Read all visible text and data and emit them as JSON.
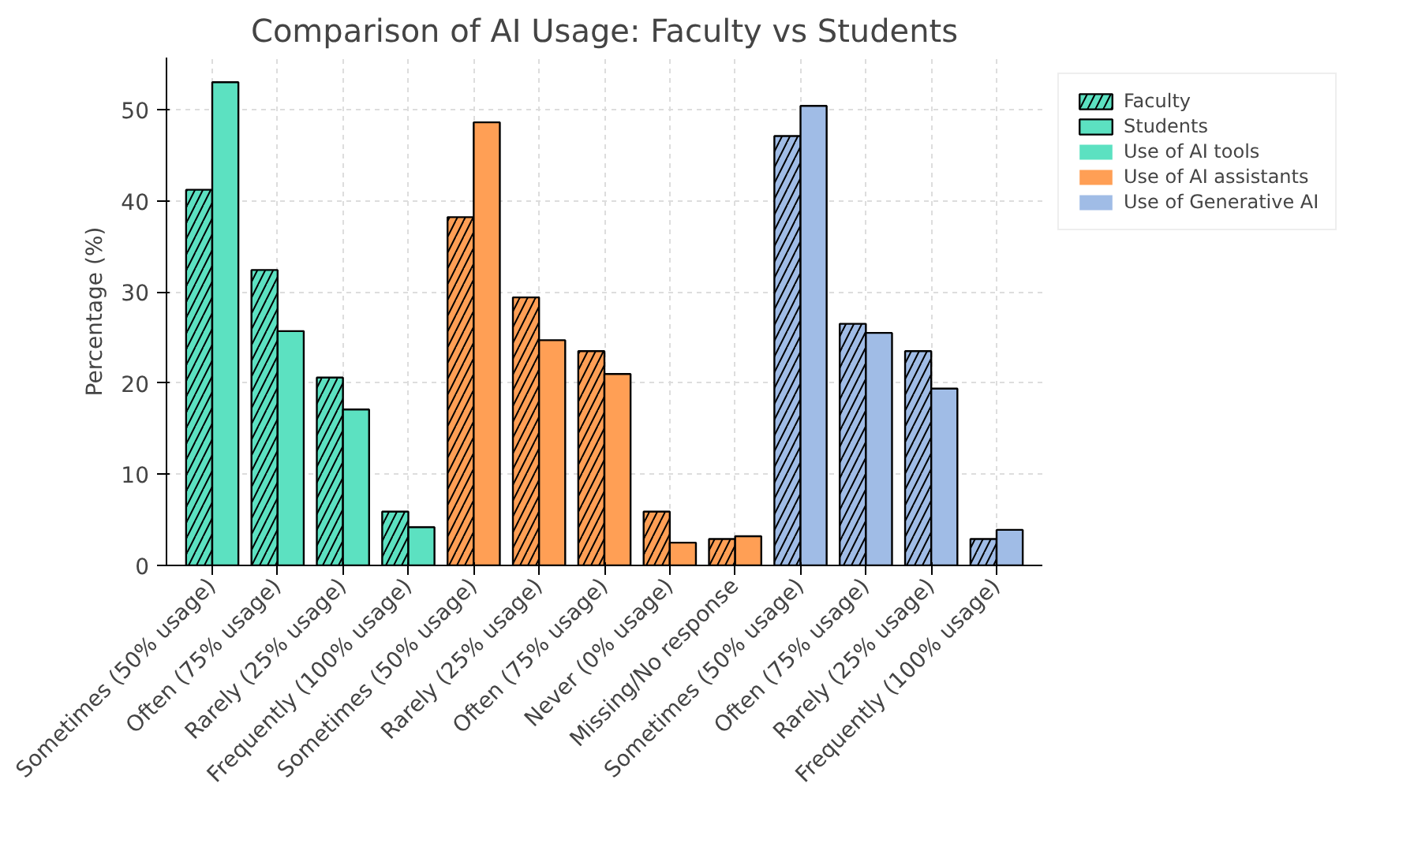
{
  "chart_data": {
    "type": "bar",
    "title": "Comparison of AI Usage: Faculty vs Students",
    "ylabel": "Percentage (%)",
    "categories": [
      "Sometimes (50% usage)",
      "Often (75% usage)",
      "Rarely (25% usage)",
      "Frequently (100% usage)",
      "Sometimes (50% usage)",
      "Rarely (25% usage)",
      "Often (75% usage)",
      "Never (0% usage)",
      "Missing/No response",
      "Sometimes (50% usage)",
      "Often (75% usage)",
      "Rarely (25% usage)",
      "Frequently (100% usage)"
    ],
    "series": [
      {
        "name": "Faculty",
        "colors": [
          "#5ce1c1",
          "#5ce1c1",
          "#5ce1c1",
          "#5ce1c1",
          "#ff9f55",
          "#ff9f55",
          "#ff9f55",
          "#ff9f55",
          "#ff9f55",
          "#a0bce6",
          "#a0bce6",
          "#a0bce6",
          "#a0bce6"
        ],
        "values": [
          41.2,
          32.4,
          20.6,
          5.9,
          38.2,
          29.4,
          23.5,
          5.9,
          2.9,
          47.1,
          26.5,
          23.5,
          2.9
        ]
      },
      {
        "name": "Students",
        "colors": [
          "#5ce1c1",
          "#5ce1c1",
          "#5ce1c1",
          "#5ce1c1",
          "#ff9f55",
          "#ff9f55",
          "#ff9f55",
          "#ff9f55",
          "#ff9f55",
          "#a0bce6",
          "#a0bce6",
          "#a0bce6",
          "#a0bce6"
        ],
        "values": [
          53.0,
          25.7,
          17.1,
          4.2,
          48.6,
          24.7,
          21.0,
          2.5,
          3.2,
          50.4,
          25.5,
          19.4,
          3.9
        ]
      },
      {
        "name": "Use of AI tools",
        "color": "#5ce1c1",
        "values": [
          null,
          null,
          null,
          null,
          null,
          null,
          null,
          null,
          null,
          null,
          null,
          null,
          null
        ]
      },
      {
        "name": "Use of AI assistants",
        "color": "#ff9f55",
        "values": [
          null,
          null,
          null,
          null,
          null,
          null,
          null,
          null,
          null,
          null,
          null,
          null,
          null
        ]
      },
      {
        "name": "Use of Generative AI",
        "color": "#a0bce6",
        "values": [
          null,
          null,
          null,
          null,
          null,
          null,
          null,
          null,
          null,
          null,
          null,
          null,
          null
        ]
      }
    ],
    "ylim": [
      0,
      55.7
    ],
    "yticks": [
      0,
      10,
      20,
      30,
      40,
      50
    ],
    "grid": true,
    "legend": "top right"
  }
}
